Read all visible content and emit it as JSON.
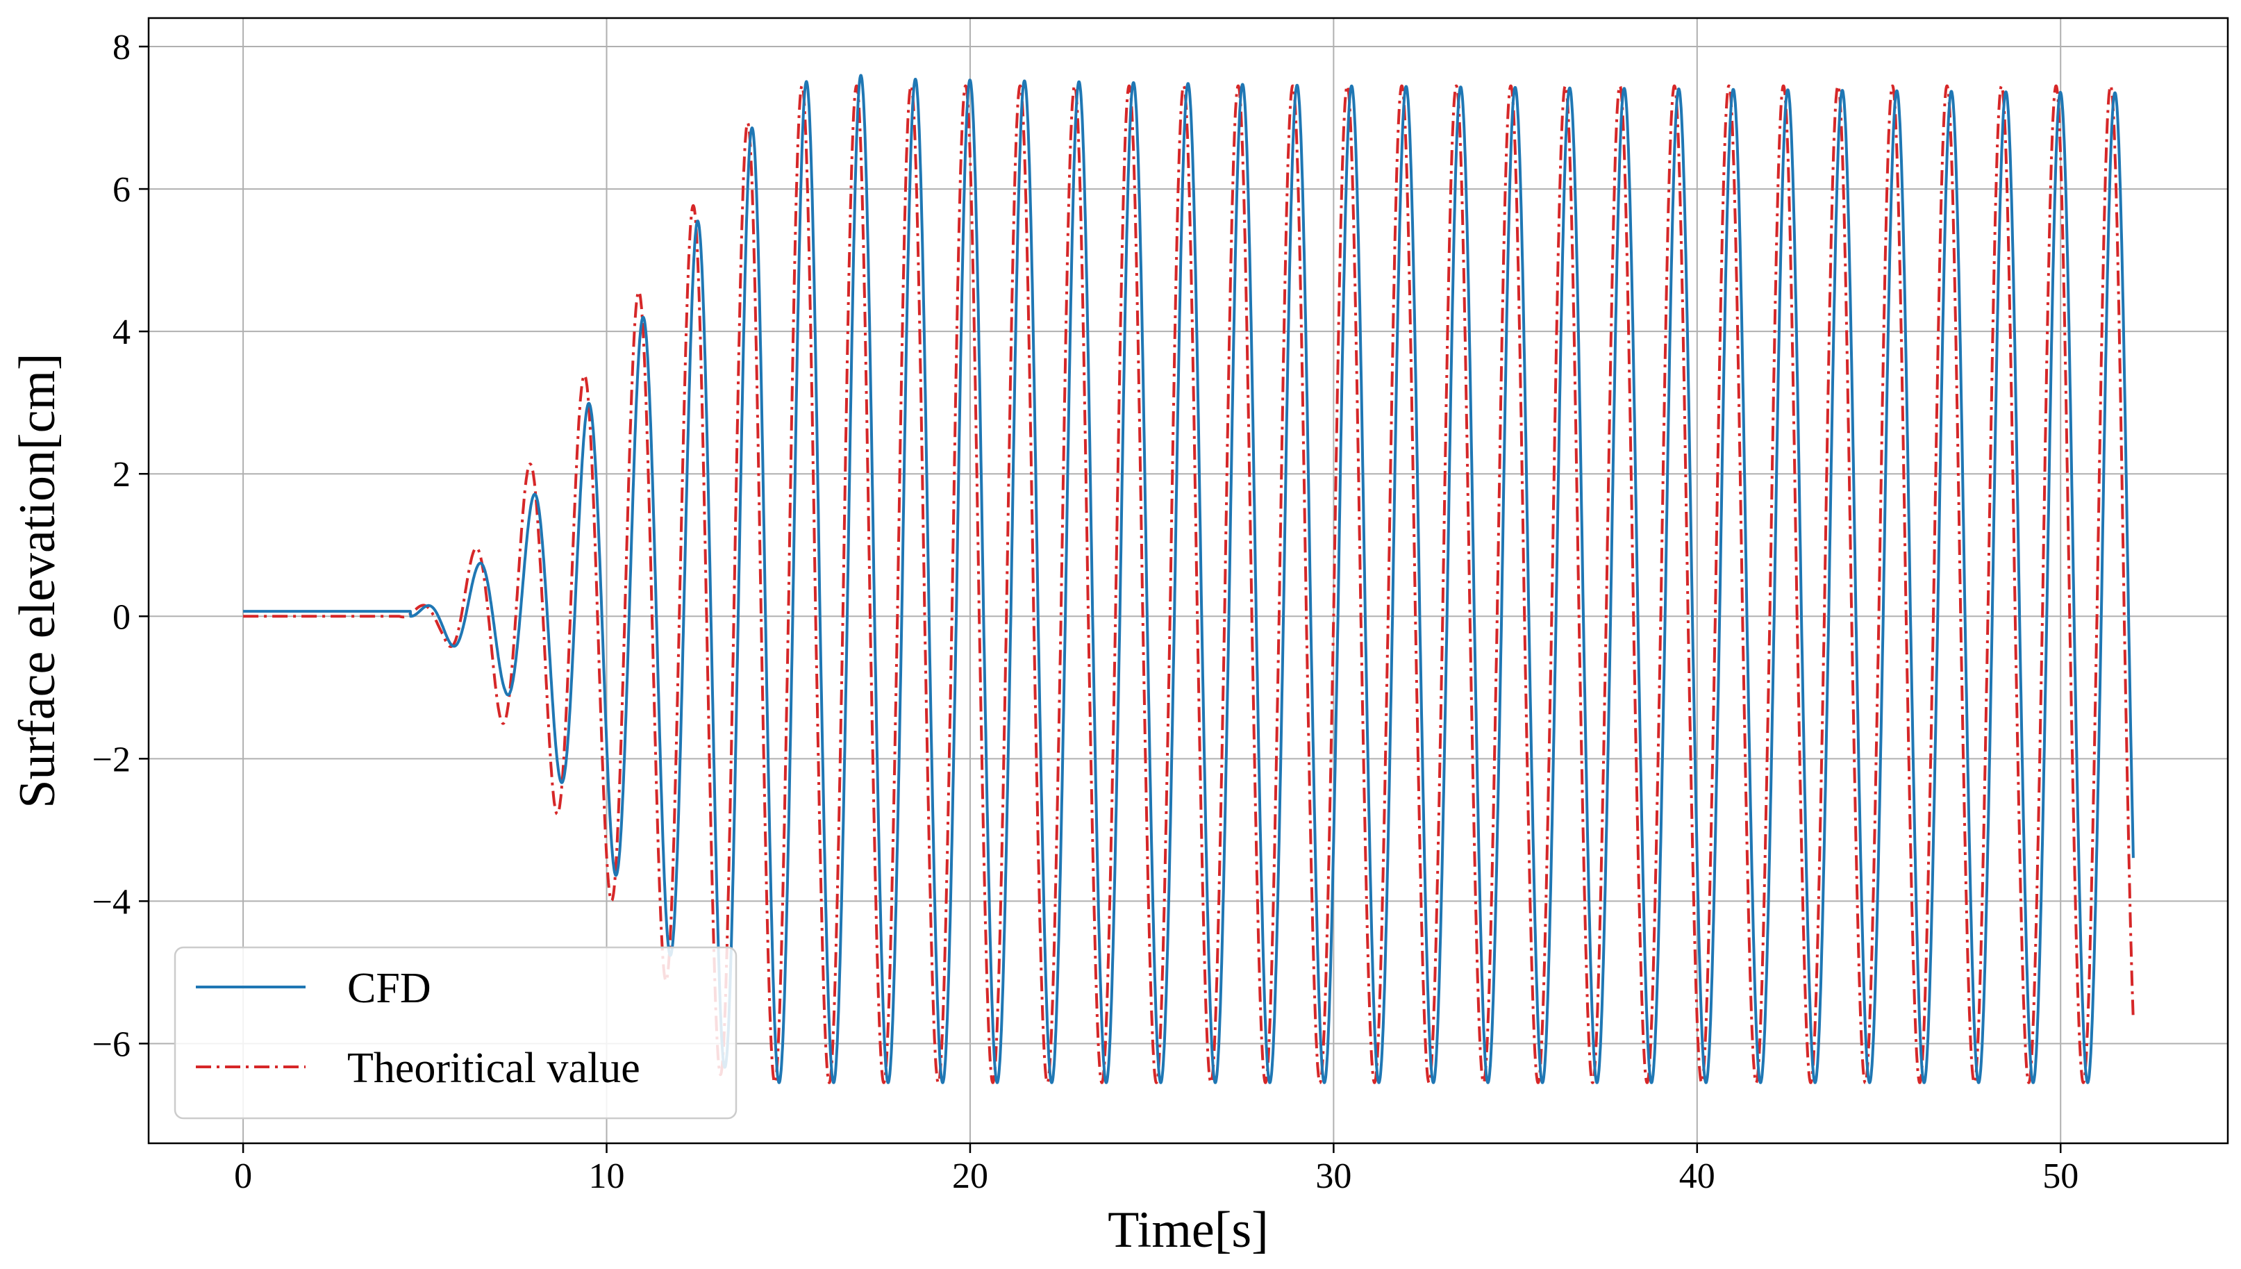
{
  "chart_data": {
    "type": "line",
    "title": "",
    "xlabel": "Time[s]",
    "ylabel": "Surface elevation[cm]",
    "xlim": [
      -2.6,
      54.6
    ],
    "ylim": [
      -7.4,
      8.4
    ],
    "xticks": [
      0,
      10,
      20,
      30,
      40,
      50
    ],
    "xtick_labels": [
      "0",
      "10",
      "20",
      "30",
      "40",
      "50"
    ],
    "yticks": [
      -6,
      -4,
      -2,
      0,
      2,
      4,
      6,
      8
    ],
    "ytick_labels": [
      "−6",
      "−4",
      "−2",
      "0",
      "2",
      "4",
      "6",
      "8"
    ],
    "grid": true,
    "legend_position": "lower-left",
    "wave_period_s": 1.5,
    "x_end_s": 52,
    "series": [
      {
        "name": "CFD",
        "color": "#1f77b4",
        "style": "solid",
        "onset_s": 4.6,
        "baseline_cm": 0.07,
        "trough_cm": -6.55,
        "envelope": [
          [
            0,
            0
          ],
          [
            4.6,
            0
          ],
          [
            5.5,
            0.3
          ],
          [
            7.2,
            1.05
          ],
          [
            8.6,
            2.2
          ],
          [
            10.2,
            3.6
          ],
          [
            11.8,
            4.8
          ],
          [
            13.2,
            6.3
          ],
          [
            14.7,
            7.35
          ],
          [
            16.2,
            7.65
          ],
          [
            17.7,
            7.55
          ],
          [
            30,
            7.45
          ],
          [
            52,
            7.35
          ]
        ],
        "time_shift_s": 0.12
      },
      {
        "name": "Theoritical value",
        "color": "#d62728",
        "style": "dashdot",
        "onset_s": 4.3,
        "baseline_cm": 0.0,
        "trough_cm": -6.55,
        "envelope": [
          [
            0,
            0
          ],
          [
            4.3,
            0
          ],
          [
            5.5,
            0.3
          ],
          [
            7.2,
            1.55
          ],
          [
            8.6,
            2.75
          ],
          [
            10.2,
            4.05
          ],
          [
            11.8,
            5.25
          ],
          [
            13.2,
            6.5
          ],
          [
            14.7,
            7.45
          ],
          [
            52,
            7.45
          ]
        ],
        "time_shift_s": 0.0
      }
    ]
  }
}
